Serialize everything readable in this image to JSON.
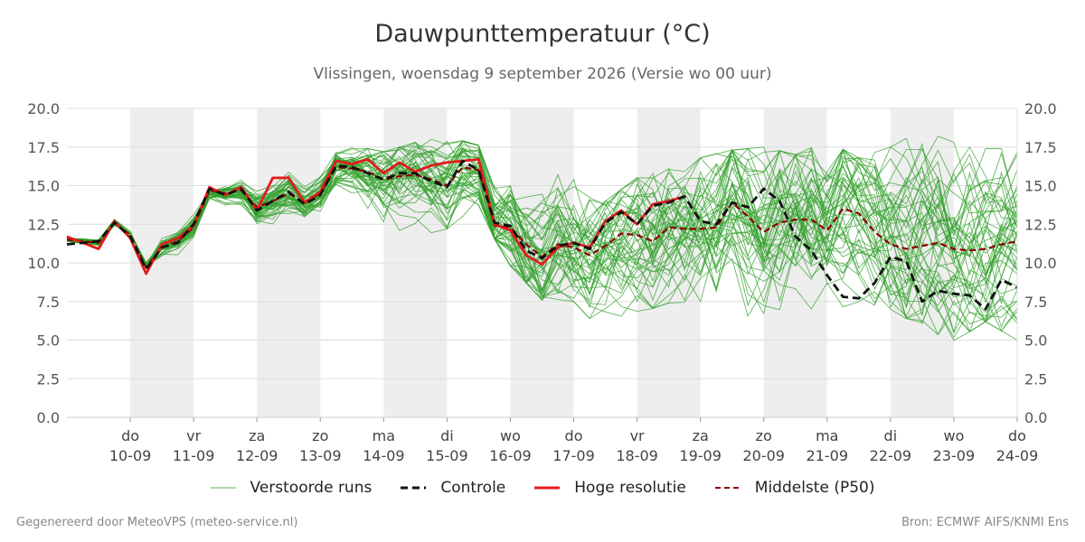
{
  "header": {
    "title": "Dauwpunttemperatuur (°C)",
    "subtitle": "Vlissingen, woensdag  9 september 2026 (Versie wo 00 uur)"
  },
  "footer": {
    "left": "Gegenereerd door MeteoVPS (meteo-service.nl)",
    "right": "Bron: ECMWF AIFS/KNMI Ens"
  },
  "legend": {
    "items": [
      {
        "label": "Verstoorde runs",
        "color": "#33a02c",
        "style": "thin"
      },
      {
        "label": "Controle",
        "color": "#111111",
        "style": "dashed"
      },
      {
        "label": "Hoge resolutie",
        "color": "#e31a1c",
        "style": "solid"
      },
      {
        "label": "Middelste (P50)",
        "color": "#8b0000",
        "style": "dashed-thin"
      }
    ]
  },
  "chart_data": {
    "type": "line",
    "x_unit": "days from 2026-09-09 00:00",
    "xlim": [
      0,
      15
    ],
    "ylim": [
      0,
      20
    ],
    "yticks": [
      0.0,
      2.5,
      5.0,
      7.5,
      10.0,
      12.5,
      15.0,
      17.5,
      20.0
    ],
    "grid": true,
    "legend_position": "bottom",
    "weekend_bands": [
      [
        1,
        2
      ],
      [
        3,
        4
      ],
      [
        5,
        6
      ],
      [
        7,
        8
      ],
      [
        9,
        10
      ],
      [
        11,
        12
      ],
      [
        13,
        14
      ]
    ],
    "xticks": [
      {
        "x": 1,
        "day": "do",
        "date": "10-09"
      },
      {
        "x": 2,
        "day": "vr",
        "date": "11-09"
      },
      {
        "x": 3,
        "day": "za",
        "date": "12-09"
      },
      {
        "x": 4,
        "day": "zo",
        "date": "13-09"
      },
      {
        "x": 5,
        "day": "ma",
        "date": "14-09"
      },
      {
        "x": 6,
        "day": "di",
        "date": "15-09"
      },
      {
        "x": 7,
        "day": "wo",
        "date": "16-09"
      },
      {
        "x": 8,
        "day": "do",
        "date": "17-09"
      },
      {
        "x": 9,
        "day": "vr",
        "date": "18-09"
      },
      {
        "x": 10,
        "day": "za",
        "date": "19-09"
      },
      {
        "x": 11,
        "day": "zo",
        "date": "20-09"
      },
      {
        "x": 12,
        "day": "ma",
        "date": "21-09"
      },
      {
        "x": 13,
        "day": "di",
        "date": "22-09"
      },
      {
        "x": 14,
        "day": "wo",
        "date": "23-09"
      },
      {
        "x": 15,
        "day": "do",
        "date": "24-09"
      }
    ],
    "series": [
      {
        "name": "Controle",
        "color": "#111111",
        "x": [
          0,
          0.5,
          0.75,
          1,
          1.25,
          1.5,
          1.75,
          2,
          2.25,
          2.5,
          2.75,
          3,
          3.25,
          3.5,
          3.75,
          4,
          4.25,
          4.5,
          4.75,
          5,
          5.25,
          5.5,
          5.75,
          6,
          6.25,
          6.5,
          6.75,
          7,
          7.25,
          7.5,
          7.75,
          8,
          8.25,
          8.5,
          8.75,
          9,
          9.25,
          9.5,
          9.75,
          10,
          10.25,
          10.5,
          10.75,
          11,
          11.25,
          11.5,
          11.75,
          12,
          12.25,
          12.5,
          12.75,
          13,
          13.25,
          13.5,
          13.75,
          14,
          14.25,
          14.5,
          14.75,
          15
        ],
        "y": [
          11.2,
          11.4,
          12.6,
          11.7,
          9.6,
          11.0,
          11.3,
          12.5,
          14.8,
          14.4,
          14.8,
          13.4,
          14.0,
          14.6,
          13.8,
          14.4,
          16.3,
          16.2,
          15.8,
          15.4,
          15.8,
          15.8,
          15.3,
          14.9,
          16.6,
          16.0,
          12.6,
          12.4,
          10.8,
          10.3,
          11.1,
          11.3,
          10.9,
          12.6,
          13.3,
          12.5,
          13.7,
          13.9,
          14.3,
          12.7,
          12.5,
          13.9,
          13.6,
          14.8,
          14.0,
          11.7,
          10.8,
          9.2,
          7.8,
          7.7,
          8.7,
          10.4,
          10.1,
          7.5,
          8.2,
          8.0,
          7.9,
          7.0,
          8.9,
          8.4
        ]
      },
      {
        "name": "Hoge resolutie",
        "color": "#e31a1c",
        "x": [
          0,
          0.5,
          0.75,
          1,
          1.25,
          1.5,
          1.75,
          2,
          2.25,
          2.5,
          2.75,
          3,
          3.25,
          3.5,
          3.75,
          4,
          4.25,
          4.5,
          4.75,
          5,
          5.25,
          5.5,
          5.75,
          6,
          6.25,
          6.5,
          6.75,
          7,
          7.25,
          7.5,
          7.75,
          8,
          8.25,
          8.5,
          8.75,
          9,
          9.25,
          9.5,
          9.75,
          10
        ],
        "y": [
          11.7,
          10.9,
          12.7,
          11.6,
          9.3,
          11.2,
          11.6,
          12.4,
          14.9,
          14.4,
          14.9,
          13.4,
          15.5,
          15.5,
          13.9,
          14.6,
          16.6,
          16.4,
          16.7,
          15.8,
          16.5,
          15.9,
          16.3,
          16.5,
          16.6,
          16.7,
          12.5,
          12.1,
          10.5,
          9.9,
          11.0,
          11.3,
          11.0,
          12.7,
          13.4,
          12.5,
          13.8,
          14.0,
          14.3,
          null
        ]
      },
      {
        "name": "Middelste (P50)",
        "color": "#8b0000",
        "x": [
          0,
          0.5,
          0.75,
          1,
          1.25,
          1.5,
          1.75,
          2,
          2.25,
          2.5,
          2.75,
          3,
          3.25,
          3.5,
          3.75,
          4,
          4.25,
          4.5,
          4.75,
          5,
          5.25,
          5.5,
          5.75,
          6,
          6.25,
          6.5,
          6.75,
          7,
          7.25,
          7.5,
          7.75,
          8,
          8.25,
          8.5,
          8.75,
          9,
          9.25,
          9.5,
          9.75,
          10,
          10.25,
          10.5,
          10.75,
          11,
          11.25,
          11.5,
          11.75,
          12,
          12.25,
          12.5,
          12.75,
          13,
          13.25,
          13.5,
          13.75,
          14,
          14.25,
          14.5,
          14.75,
          15
        ],
        "y": [
          11.5,
          11.3,
          12.6,
          11.8,
          9.7,
          11.0,
          11.4,
          12.3,
          14.7,
          14.5,
          14.7,
          13.6,
          14.0,
          14.5,
          13.9,
          14.5,
          16.2,
          16.1,
          15.9,
          15.4,
          15.6,
          15.7,
          15.4,
          15.0,
          16.2,
          16.0,
          12.4,
          12.3,
          11.2,
          10.4,
          11.2,
          11.0,
          10.5,
          11.1,
          11.9,
          11.8,
          11.4,
          12.3,
          12.2,
          12.2,
          12.3,
          13.9,
          13.0,
          12.0,
          12.6,
          12.8,
          12.8,
          12.1,
          13.5,
          13.2,
          12.0,
          11.2,
          10.9,
          11.1,
          11.3,
          10.9,
          10.8,
          10.9,
          11.2,
          11.4
        ]
      }
    ],
    "perturbed_runs": {
      "name": "Verstoorde runs",
      "color": "#33a02c",
      "count": 50,
      "x": [
        0,
        0.5,
        1,
        1.5,
        2,
        2.5,
        3,
        3.5,
        4,
        4.5,
        5,
        5.5,
        6,
        6.5,
        7,
        7.5,
        8,
        8.5,
        9,
        9.5,
        10,
        10.5,
        11,
        11.5,
        12,
        12.5,
        13,
        13.5,
        14,
        14.5,
        15
      ],
      "envelope_low": [
        9.5,
        10.4,
        11.9,
        7.7,
        10.0,
        13.4,
        11.4,
        12.8,
        13.2,
        14.3,
        10.5,
        11.7,
        12.2,
        13.3,
        9.8,
        7.6,
        7.5,
        5.3,
        6.7,
        7.4,
        7.5,
        6.5,
        6.6,
        6.4,
        6.8,
        7.5,
        7.0,
        5.8,
        4.9,
        6.2,
        5.0
      ],
      "envelope_high": [
        12.2,
        12.6,
        13.3,
        12.1,
        13.2,
        16.0,
        15.9,
        16.3,
        16.7,
        17.6,
        17.2,
        17.8,
        18.2,
        17.6,
        17.4,
        16.5,
        15.4,
        14.0,
        15.5,
        16.1,
        16.8,
        17.3,
        17.5,
        17.0,
        17.9,
        16.8,
        17.5,
        18.6,
        17.8,
        17.4,
        17.4
      ]
    }
  }
}
